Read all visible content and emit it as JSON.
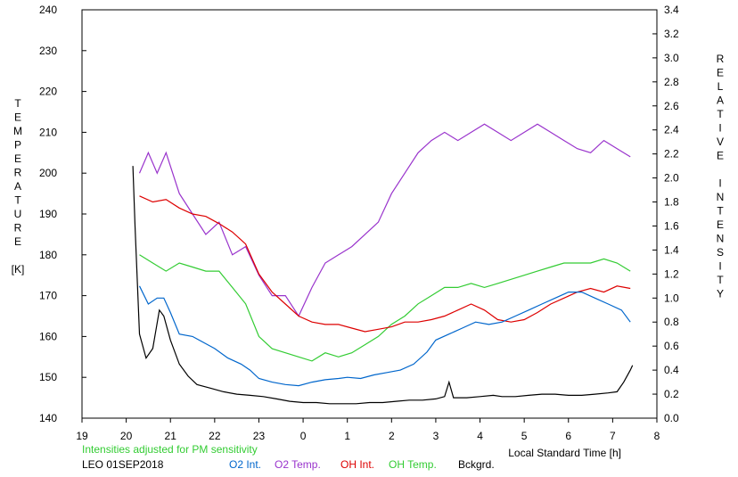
{
  "chart_data": {
    "type": "line",
    "ylabel_left_letters": [
      "T",
      "E",
      "M",
      "P",
      "E",
      "R",
      "A",
      "T",
      "U",
      "R",
      "E",
      "",
      "[K]"
    ],
    "ylabel_right_letters": [
      "R",
      "E",
      "L",
      "A",
      "T",
      "I",
      "V",
      "E",
      "",
      "I",
      "N",
      "T",
      "E",
      "N",
      "S",
      "I",
      "T",
      "Y"
    ],
    "xlabel": "Local Standard Time [h]",
    "note": "Intensities adjusted for PM sensitivity",
    "station": "LEO 01SEP2018",
    "x_tick_labels": [
      "19",
      "20",
      "21",
      "22",
      "23",
      "0",
      "1",
      "2",
      "3",
      "4",
      "5",
      "6",
      "7",
      "8"
    ],
    "x_range": [
      19,
      32
    ],
    "y_left_range": [
      140,
      240
    ],
    "y_left_ticks": [
      140,
      150,
      160,
      170,
      180,
      190,
      200,
      210,
      220,
      230,
      240
    ],
    "y_right_range": [
      0.0,
      3.4
    ],
    "y_right_ticks": [
      "0.0",
      "0.2",
      "0.4",
      "0.6",
      "0.8",
      "1.0",
      "1.2",
      "1.4",
      "1.6",
      "1.8",
      "2.0",
      "2.2",
      "2.4",
      "2.6",
      "2.8",
      "3.0",
      "3.2",
      "3.4"
    ],
    "grid": false,
    "legend_position": "bottom",
    "series": [
      {
        "name": "O2 Int.",
        "axis": "right",
        "color": "#0066cc",
        "points": [
          [
            20.3,
            1.1
          ],
          [
            20.5,
            0.95
          ],
          [
            20.7,
            1.0
          ],
          [
            20.85,
            1.0
          ],
          [
            21.0,
            0.88
          ],
          [
            21.2,
            0.7
          ],
          [
            21.5,
            0.68
          ],
          [
            21.8,
            0.62
          ],
          [
            22.0,
            0.58
          ],
          [
            22.3,
            0.5
          ],
          [
            22.6,
            0.45
          ],
          [
            22.8,
            0.4
          ],
          [
            23.0,
            0.33
          ],
          [
            23.3,
            0.3
          ],
          [
            23.6,
            0.28
          ],
          [
            23.9,
            0.27
          ],
          [
            24.2,
            0.3
          ],
          [
            24.5,
            0.32
          ],
          [
            24.8,
            0.33
          ],
          [
            25.0,
            0.34
          ],
          [
            25.3,
            0.33
          ],
          [
            25.6,
            0.36
          ],
          [
            25.9,
            0.38
          ],
          [
            26.2,
            0.4
          ],
          [
            26.5,
            0.45
          ],
          [
            26.8,
            0.55
          ],
          [
            27.0,
            0.65
          ],
          [
            27.3,
            0.7
          ],
          [
            27.6,
            0.75
          ],
          [
            27.9,
            0.8
          ],
          [
            28.2,
            0.78
          ],
          [
            28.5,
            0.8
          ],
          [
            28.8,
            0.85
          ],
          [
            29.1,
            0.9
          ],
          [
            29.4,
            0.95
          ],
          [
            29.7,
            1.0
          ],
          [
            30.0,
            1.05
          ],
          [
            30.3,
            1.05
          ],
          [
            30.6,
            1.0
          ],
          [
            30.9,
            0.95
          ],
          [
            31.2,
            0.9
          ],
          [
            31.4,
            0.8
          ]
        ]
      },
      {
        "name": "O2 Temp.",
        "axis": "left",
        "color": "#9933cc",
        "points": [
          [
            20.3,
            200
          ],
          [
            20.5,
            205
          ],
          [
            20.7,
            200
          ],
          [
            20.9,
            205
          ],
          [
            21.2,
            195
          ],
          [
            21.5,
            190
          ],
          [
            21.8,
            185
          ],
          [
            22.1,
            188
          ],
          [
            22.4,
            180
          ],
          [
            22.7,
            182
          ],
          [
            23.0,
            175
          ],
          [
            23.3,
            170
          ],
          [
            23.6,
            170
          ],
          [
            23.9,
            165
          ],
          [
            24.2,
            172
          ],
          [
            24.5,
            178
          ],
          [
            24.8,
            180
          ],
          [
            25.1,
            182
          ],
          [
            25.4,
            185
          ],
          [
            25.7,
            188
          ],
          [
            26.0,
            195
          ],
          [
            26.3,
            200
          ],
          [
            26.6,
            205
          ],
          [
            26.9,
            208
          ],
          [
            27.2,
            210
          ],
          [
            27.5,
            208
          ],
          [
            27.8,
            210
          ],
          [
            28.1,
            212
          ],
          [
            28.4,
            210
          ],
          [
            28.7,
            208
          ],
          [
            29.0,
            210
          ],
          [
            29.3,
            212
          ],
          [
            29.6,
            210
          ],
          [
            29.9,
            208
          ],
          [
            30.2,
            206
          ],
          [
            30.5,
            205
          ],
          [
            30.8,
            208
          ],
          [
            31.1,
            206
          ],
          [
            31.4,
            204
          ]
        ]
      },
      {
        "name": "OH Int.",
        "axis": "right",
        "color": "#dd0000",
        "points": [
          [
            20.3,
            1.85
          ],
          [
            20.6,
            1.8
          ],
          [
            20.9,
            1.82
          ],
          [
            21.2,
            1.75
          ],
          [
            21.5,
            1.7
          ],
          [
            21.8,
            1.68
          ],
          [
            22.1,
            1.62
          ],
          [
            22.4,
            1.55
          ],
          [
            22.7,
            1.45
          ],
          [
            23.0,
            1.2
          ],
          [
            23.3,
            1.05
          ],
          [
            23.6,
            0.95
          ],
          [
            23.9,
            0.85
          ],
          [
            24.2,
            0.8
          ],
          [
            24.5,
            0.78
          ],
          [
            24.8,
            0.78
          ],
          [
            25.1,
            0.75
          ],
          [
            25.4,
            0.72
          ],
          [
            25.7,
            0.74
          ],
          [
            26.0,
            0.76
          ],
          [
            26.3,
            0.8
          ],
          [
            26.6,
            0.8
          ],
          [
            26.9,
            0.82
          ],
          [
            27.2,
            0.85
          ],
          [
            27.5,
            0.9
          ],
          [
            27.8,
            0.95
          ],
          [
            28.1,
            0.9
          ],
          [
            28.4,
            0.82
          ],
          [
            28.7,
            0.8
          ],
          [
            29.0,
            0.82
          ],
          [
            29.3,
            0.88
          ],
          [
            29.6,
            0.95
          ],
          [
            29.9,
            1.0
          ],
          [
            30.2,
            1.05
          ],
          [
            30.5,
            1.08
          ],
          [
            30.8,
            1.05
          ],
          [
            31.1,
            1.1
          ],
          [
            31.4,
            1.08
          ]
        ]
      },
      {
        "name": "OH Temp.",
        "axis": "left",
        "color": "#33cc33",
        "points": [
          [
            20.3,
            180
          ],
          [
            20.6,
            178
          ],
          [
            20.9,
            176
          ],
          [
            21.2,
            178
          ],
          [
            21.5,
            177
          ],
          [
            21.8,
            176
          ],
          [
            22.1,
            176
          ],
          [
            22.4,
            172
          ],
          [
            22.7,
            168
          ],
          [
            23.0,
            160
          ],
          [
            23.3,
            157
          ],
          [
            23.6,
            156
          ],
          [
            23.9,
            155
          ],
          [
            24.2,
            154
          ],
          [
            24.5,
            156
          ],
          [
            24.8,
            155
          ],
          [
            25.1,
            156
          ],
          [
            25.4,
            158
          ],
          [
            25.7,
            160
          ],
          [
            26.0,
            163
          ],
          [
            26.3,
            165
          ],
          [
            26.6,
            168
          ],
          [
            26.9,
            170
          ],
          [
            27.2,
            172
          ],
          [
            27.5,
            172
          ],
          [
            27.8,
            173
          ],
          [
            28.1,
            172
          ],
          [
            28.4,
            173
          ],
          [
            28.7,
            174
          ],
          [
            29.0,
            175
          ],
          [
            29.3,
            176
          ],
          [
            29.6,
            177
          ],
          [
            29.9,
            178
          ],
          [
            30.2,
            178
          ],
          [
            30.5,
            178
          ],
          [
            30.8,
            179
          ],
          [
            31.1,
            178
          ],
          [
            31.4,
            176
          ]
        ]
      },
      {
        "name": "Bckgrd.",
        "axis": "right",
        "color": "#000000",
        "points": [
          [
            20.15,
            2.1
          ],
          [
            20.2,
            1.6
          ],
          [
            20.3,
            0.7
          ],
          [
            20.45,
            0.5
          ],
          [
            20.6,
            0.58
          ],
          [
            20.75,
            0.9
          ],
          [
            20.85,
            0.85
          ],
          [
            21.0,
            0.65
          ],
          [
            21.2,
            0.45
          ],
          [
            21.4,
            0.35
          ],
          [
            21.6,
            0.28
          ],
          [
            21.9,
            0.25
          ],
          [
            22.2,
            0.22
          ],
          [
            22.5,
            0.2
          ],
          [
            22.8,
            0.19
          ],
          [
            23.1,
            0.18
          ],
          [
            23.4,
            0.16
          ],
          [
            23.7,
            0.14
          ],
          [
            24.0,
            0.13
          ],
          [
            24.3,
            0.13
          ],
          [
            24.6,
            0.12
          ],
          [
            24.9,
            0.12
          ],
          [
            25.2,
            0.12
          ],
          [
            25.5,
            0.13
          ],
          [
            25.8,
            0.13
          ],
          [
            26.1,
            0.14
          ],
          [
            26.4,
            0.15
          ],
          [
            26.7,
            0.15
          ],
          [
            27.0,
            0.16
          ],
          [
            27.2,
            0.18
          ],
          [
            27.3,
            0.3
          ],
          [
            27.4,
            0.17
          ],
          [
            27.7,
            0.17
          ],
          [
            28.0,
            0.18
          ],
          [
            28.3,
            0.19
          ],
          [
            28.5,
            0.18
          ],
          [
            28.8,
            0.18
          ],
          [
            29.1,
            0.19
          ],
          [
            29.4,
            0.2
          ],
          [
            29.7,
            0.2
          ],
          [
            30.0,
            0.19
          ],
          [
            30.3,
            0.19
          ],
          [
            30.6,
            0.2
          ],
          [
            30.9,
            0.21
          ],
          [
            31.1,
            0.22
          ],
          [
            31.25,
            0.3
          ],
          [
            31.4,
            0.4
          ],
          [
            31.45,
            0.44
          ]
        ]
      }
    ]
  }
}
